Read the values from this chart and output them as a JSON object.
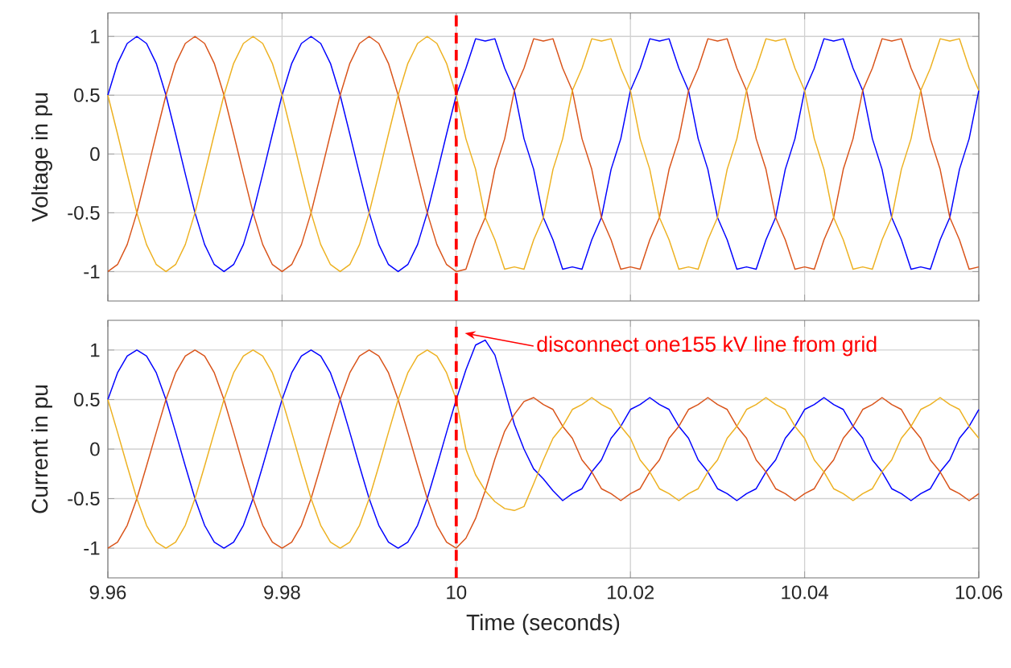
{
  "chart_data": [
    {
      "type": "line",
      "ylabel": "Voltage in pu",
      "xlim": [
        9.96,
        10.06
      ],
      "ylim": [
        -1.25,
        1.2
      ],
      "xticks": [
        9.96,
        9.98,
        10,
        10.02,
        10.04,
        10.06
      ],
      "yticks": [
        -1,
        -0.5,
        0,
        0.5,
        1
      ],
      "grid": true,
      "tick_labels": "y",
      "ref_lines": [
        {
          "axis": "x",
          "value": 10,
          "color": "#ff0000",
          "line_style": "dashed"
        }
      ],
      "x": [
        9.96,
        9.96111,
        9.96222,
        9.96333,
        9.96444,
        9.96556,
        9.96667,
        9.96778,
        9.96889,
        9.97,
        9.97111,
        9.97222,
        9.97333,
        9.97444,
        9.97556,
        9.97667,
        9.97778,
        9.97889,
        9.98,
        9.98111,
        9.98222,
        9.98333,
        9.98444,
        9.98556,
        9.98667,
        9.98778,
        9.98889,
        9.99,
        9.99111,
        9.99222,
        9.99333,
        9.99444,
        9.99556,
        9.99667,
        9.99778,
        9.99889,
        10,
        10.00111,
        10.00222,
        10.00333,
        10.00444,
        10.00556,
        10.00667,
        10.00778,
        10.00889,
        10.01,
        10.01111,
        10.01222,
        10.01333,
        10.01444,
        10.01556,
        10.01667,
        10.01778,
        10.01889,
        10.02,
        10.02111,
        10.02222,
        10.02333,
        10.02444,
        10.02556,
        10.02667,
        10.02778,
        10.02889,
        10.03,
        10.03111,
        10.03222,
        10.03333,
        10.03444,
        10.03556,
        10.03667,
        10.03778,
        10.03889,
        10.04,
        10.04111,
        10.04222,
        10.04333,
        10.04444,
        10.04556,
        10.04667,
        10.04778,
        10.04889,
        10.05,
        10.05111,
        10.05222,
        10.05333,
        10.05444,
        10.05556,
        10.05667,
        10.05778,
        10.05889,
        10.06
      ],
      "series": [
        {
          "color": "#0000ff",
          "values": [
            0.5,
            0.77,
            0.94,
            1,
            0.94,
            0.77,
            0.5,
            0.17,
            -0.17,
            -0.5,
            -0.77,
            -0.94,
            -1,
            -0.94,
            -0.77,
            -0.5,
            -0.17,
            0.17,
            0.5,
            0.77,
            0.94,
            1,
            0.94,
            0.77,
            0.5,
            0.17,
            -0.17,
            -0.5,
            -0.77,
            -0.94,
            -1,
            -0.94,
            -0.77,
            -0.5,
            -0.17,
            0.17,
            0.5,
            0.73,
            0.98,
            0.96,
            0.98,
            0.73,
            0.54,
            0.13,
            -0.13,
            -0.54,
            -0.73,
            -0.98,
            -0.96,
            -0.98,
            -0.73,
            -0.54,
            -0.13,
            0.13,
            0.54,
            0.73,
            0.98,
            0.96,
            0.98,
            0.73,
            0.54,
            0.13,
            -0.13,
            -0.54,
            -0.73,
            -0.98,
            -0.96,
            -0.98,
            -0.73,
            -0.54,
            -0.13,
            0.13,
            0.54,
            0.73,
            0.98,
            0.96,
            0.98,
            0.73,
            0.54,
            0.13,
            -0.13,
            -0.54,
            -0.73,
            -0.98,
            -0.96,
            -0.98,
            -0.73,
            -0.54,
            -0.13,
            0.13,
            0.54
          ]
        },
        {
          "color": "#d95319",
          "values": [
            -1,
            -0.94,
            -0.77,
            -0.5,
            -0.17,
            0.17,
            0.5,
            0.77,
            0.94,
            1,
            0.94,
            0.77,
            0.5,
            0.17,
            -0.17,
            -0.5,
            -0.77,
            -0.94,
            -1,
            -0.94,
            -0.77,
            -0.5,
            -0.17,
            0.17,
            0.5,
            0.77,
            0.94,
            1,
            0.94,
            0.77,
            0.5,
            0.17,
            -0.17,
            -0.5,
            -0.77,
            -0.94,
            -1,
            -0.98,
            -0.73,
            -0.54,
            -0.13,
            0.13,
            0.54,
            0.73,
            0.98,
            0.96,
            0.98,
            0.73,
            0.54,
            0.13,
            -0.13,
            -0.54,
            -0.73,
            -0.98,
            -0.96,
            -0.98,
            -0.73,
            -0.54,
            -0.13,
            0.13,
            0.54,
            0.73,
            0.98,
            0.96,
            0.98,
            0.73,
            0.54,
            0.13,
            -0.13,
            -0.54,
            -0.73,
            -0.98,
            -0.96,
            -0.98,
            -0.73,
            -0.54,
            -0.13,
            0.13,
            0.54,
            0.73,
            0.98,
            0.96,
            0.98,
            0.73,
            0.54,
            0.13,
            -0.13,
            -0.54,
            -0.73,
            -0.98,
            -0.96
          ]
        },
        {
          "color": "#edb120",
          "values": [
            0.5,
            0.17,
            -0.17,
            -0.5,
            -0.77,
            -0.94,
            -1,
            -0.94,
            -0.77,
            -0.5,
            -0.17,
            0.17,
            0.5,
            0.77,
            0.94,
            1,
            0.94,
            0.77,
            0.5,
            0.17,
            -0.17,
            -0.5,
            -0.77,
            -0.94,
            -1,
            -0.94,
            -0.77,
            -0.5,
            -0.17,
            0.17,
            0.5,
            0.77,
            0.94,
            1,
            0.94,
            0.77,
            0.5,
            0.13,
            -0.13,
            -0.54,
            -0.73,
            -0.98,
            -0.96,
            -0.98,
            -0.73,
            -0.54,
            -0.13,
            0.13,
            0.54,
            0.73,
            0.98,
            0.96,
            0.98,
            0.73,
            0.54,
            0.13,
            -0.13,
            -0.54,
            -0.73,
            -0.98,
            -0.96,
            -0.98,
            -0.73,
            -0.54,
            -0.13,
            0.13,
            0.54,
            0.73,
            0.98,
            0.96,
            0.98,
            0.73,
            0.54,
            0.13,
            -0.13,
            -0.54,
            -0.73,
            -0.98,
            -0.96,
            -0.98,
            -0.73,
            -0.54,
            -0.13,
            0.13,
            0.54,
            0.73,
            0.98,
            0.96,
            0.98,
            0.73,
            0.54
          ]
        }
      ]
    },
    {
      "type": "line",
      "xlabel": "Time (seconds)",
      "ylabel": "Current in pu",
      "xlim": [
        9.96,
        10.06
      ],
      "ylim": [
        -1.3,
        1.3
      ],
      "xticks": [
        9.96,
        9.98,
        10,
        10.02,
        10.04,
        10.06
      ],
      "yticks": [
        -1,
        -0.5,
        0,
        0.5,
        1
      ],
      "grid": true,
      "ref_lines": [
        {
          "axis": "x",
          "value": 10,
          "color": "#ff0000",
          "line_style": "dashed"
        }
      ],
      "annotations": [
        "disconnect one155 kV line from grid"
      ],
      "x": [
        9.96,
        9.96111,
        9.96222,
        9.96333,
        9.96444,
        9.96556,
        9.96667,
        9.96778,
        9.96889,
        9.97,
        9.97111,
        9.97222,
        9.97333,
        9.97444,
        9.97556,
        9.97667,
        9.97778,
        9.97889,
        9.98,
        9.98111,
        9.98222,
        9.98333,
        9.98444,
        9.98556,
        9.98667,
        9.98778,
        9.98889,
        9.99,
        9.99111,
        9.99222,
        9.99333,
        9.99444,
        9.99556,
        9.99667,
        9.99778,
        9.99889,
        10,
        10.00111,
        10.00222,
        10.00333,
        10.00444,
        10.00556,
        10.00667,
        10.00778,
        10.00889,
        10.01,
        10.01111,
        10.01222,
        10.01333,
        10.01444,
        10.01556,
        10.01667,
        10.01778,
        10.01889,
        10.02,
        10.02111,
        10.02222,
        10.02333,
        10.02444,
        10.02556,
        10.02667,
        10.02778,
        10.02889,
        10.03,
        10.03111,
        10.03222,
        10.03333,
        10.03444,
        10.03556,
        10.03667,
        10.03778,
        10.03889,
        10.04,
        10.04111,
        10.04222,
        10.04333,
        10.04444,
        10.04556,
        10.04667,
        10.04778,
        10.04889,
        10.05,
        10.05111,
        10.05222,
        10.05333,
        10.05444,
        10.05556,
        10.05667,
        10.05778,
        10.05889,
        10.06
      ],
      "series": [
        {
          "color": "#0000ff",
          "values": [
            0.5,
            0.77,
            0.94,
            1,
            0.94,
            0.77,
            0.5,
            0.17,
            -0.17,
            -0.5,
            -0.77,
            -0.94,
            -1,
            -0.94,
            -0.77,
            -0.5,
            -0.17,
            0.17,
            0.5,
            0.77,
            0.94,
            1,
            0.94,
            0.77,
            0.5,
            0.17,
            -0.17,
            -0.5,
            -0.77,
            -0.94,
            -1,
            -0.94,
            -0.77,
            -0.5,
            -0.17,
            0.17,
            0.5,
            0.8,
            1.05,
            1.1,
            0.95,
            0.6,
            0.25,
            0,
            -0.2,
            -0.3,
            -0.42,
            -0.52,
            -0.45,
            -0.4,
            -0.23,
            -0.11,
            0.11,
            0.23,
            0.4,
            0.45,
            0.52,
            0.45,
            0.4,
            0.23,
            0.11,
            -0.11,
            -0.23,
            -0.4,
            -0.45,
            -0.52,
            -0.45,
            -0.4,
            -0.23,
            -0.11,
            0.11,
            0.23,
            0.4,
            0.45,
            0.52,
            0.45,
            0.4,
            0.23,
            0.11,
            -0.11,
            -0.23,
            -0.4,
            -0.45,
            -0.52,
            -0.45,
            -0.4,
            -0.23,
            -0.11,
            0.11,
            0.23,
            0.4
          ]
        },
        {
          "color": "#d95319",
          "values": [
            -1,
            -0.94,
            -0.77,
            -0.5,
            -0.17,
            0.17,
            0.5,
            0.77,
            0.94,
            1,
            0.94,
            0.77,
            0.5,
            0.17,
            -0.17,
            -0.5,
            -0.77,
            -0.94,
            -1,
            -0.94,
            -0.77,
            -0.5,
            -0.17,
            0.17,
            0.5,
            0.77,
            0.94,
            1,
            0.94,
            0.77,
            0.5,
            0.17,
            -0.17,
            -0.5,
            -0.77,
            -0.94,
            -1,
            -0.9,
            -0.7,
            -0.42,
            -0.1,
            0.18,
            0.35,
            0.48,
            0.52,
            0.45,
            0.4,
            0.23,
            0.11,
            -0.11,
            -0.23,
            -0.4,
            -0.45,
            -0.52,
            -0.45,
            -0.4,
            -0.23,
            -0.11,
            0.11,
            0.23,
            0.4,
            0.45,
            0.52,
            0.45,
            0.4,
            0.23,
            0.11,
            -0.11,
            -0.23,
            -0.4,
            -0.45,
            -0.52,
            -0.45,
            -0.4,
            -0.23,
            -0.11,
            0.11,
            0.23,
            0.4,
            0.45,
            0.52,
            0.45,
            0.4,
            0.23,
            0.11,
            -0.11,
            -0.23,
            -0.4,
            -0.45,
            -0.52,
            -0.45
          ]
        },
        {
          "color": "#edb120",
          "values": [
            0.5,
            0.17,
            -0.17,
            -0.5,
            -0.77,
            -0.94,
            -1,
            -0.94,
            -0.77,
            -0.5,
            -0.17,
            0.17,
            0.5,
            0.77,
            0.94,
            1,
            0.94,
            0.77,
            0.5,
            0.17,
            -0.17,
            -0.5,
            -0.77,
            -0.94,
            -1,
            -0.94,
            -0.77,
            -0.5,
            -0.17,
            0.17,
            0.5,
            0.77,
            0.94,
            1,
            0.94,
            0.77,
            0.5,
            0,
            -0.26,
            -0.42,
            -0.53,
            -0.6,
            -0.62,
            -0.58,
            -0.35,
            -0.11,
            0.11,
            0.23,
            0.4,
            0.45,
            0.52,
            0.45,
            0.4,
            0.23,
            0.11,
            -0.11,
            -0.23,
            -0.4,
            -0.45,
            -0.52,
            -0.45,
            -0.4,
            -0.23,
            -0.11,
            0.11,
            0.23,
            0.4,
            0.45,
            0.52,
            0.45,
            0.4,
            0.23,
            0.11,
            -0.11,
            -0.23,
            -0.4,
            -0.45,
            -0.52,
            -0.45,
            -0.4,
            -0.23,
            -0.11,
            0.11,
            0.23,
            0.4,
            0.45,
            0.52,
            0.45,
            0.4,
            0.23,
            0.11
          ]
        }
      ]
    }
  ]
}
